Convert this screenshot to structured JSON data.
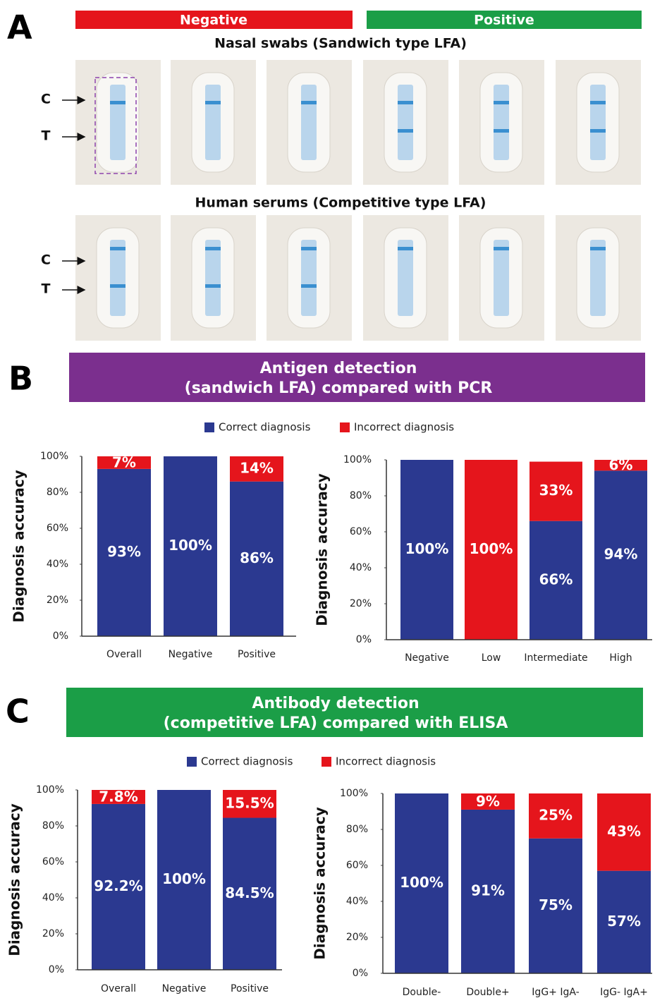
{
  "panel_a": {
    "label": "A",
    "negative": "Negative",
    "positive": "Positive",
    "rows": [
      {
        "title": "Nasal swabs (Sandwich type LFA)",
        "control": "C",
        "test": "T"
      },
      {
        "title": "Human serums (Competitive type LFA)",
        "control": "C",
        "test": "T"
      }
    ]
  },
  "panel_b": {
    "label": "B",
    "title": [
      "Antigen detection",
      "(sandwich LFA) compared with PCR"
    ]
  },
  "panel_c": {
    "label": "C",
    "title": [
      "Antibody detection",
      "(competitive LFA) compared with ELISA"
    ]
  },
  "chart_data": [
    {
      "type": "stacked_bar",
      "ylabel": "Diagnosis accuracy",
      "categories": [
        "Overall",
        "Negative",
        "Positive"
      ],
      "series": [
        {
          "name": "Correct diagnosis",
          "color": "#2b3990",
          "values": [
            93,
            100,
            86
          ],
          "value_labels": [
            "93%",
            "100%",
            "86%"
          ]
        },
        {
          "name": "Incorrect diagnosis",
          "color": "#e5151c",
          "values": [
            7,
            0,
            14
          ],
          "value_labels": [
            "7%",
            null,
            "14%"
          ]
        }
      ],
      "ylim": [
        0,
        100
      ],
      "yticks": [
        {
          "value": 0,
          "label": "0%"
        },
        {
          "value": 20,
          "label": "20%"
        },
        {
          "value": 40,
          "label": "40%"
        },
        {
          "value": 60,
          "label": "60%"
        },
        {
          "value": 80,
          "label": "80%"
        },
        {
          "value": 100,
          "label": "100%"
        }
      ]
    },
    {
      "type": "stacked_bar",
      "ylabel": "Diagnosis accuracy",
      "categories": [
        "Negative",
        "Low",
        "Intermediate",
        "High"
      ],
      "series": [
        {
          "name": "Correct diagnosis",
          "color": "#2b3990",
          "values": [
            100,
            0,
            66,
            94
          ],
          "value_labels": [
            "100%",
            null,
            "66%",
            "94%"
          ]
        },
        {
          "name": "Incorrect diagnosis",
          "color": "#e5151c",
          "values": [
            0,
            100,
            33,
            6
          ],
          "value_labels": [
            null,
            "100%",
            "33%",
            "6%"
          ]
        }
      ],
      "ylim": [
        0,
        100
      ],
      "yticks": [
        {
          "value": 0,
          "label": "0%"
        },
        {
          "value": 20,
          "label": "20%"
        },
        {
          "value": 40,
          "label": "40%"
        },
        {
          "value": 60,
          "label": "60%"
        },
        {
          "value": 80,
          "label": "80%"
        },
        {
          "value": 100,
          "label": "100%"
        }
      ]
    },
    {
      "type": "stacked_bar",
      "ylabel": "Diagnosis accuracy",
      "categories": [
        "Overall",
        "Negative",
        "Positive"
      ],
      "series": [
        {
          "name": "Correct diagnosis",
          "color": "#2b3990",
          "values": [
            92.2,
            100,
            84.5
          ],
          "value_labels": [
            "92.2%",
            "100%",
            "84.5%"
          ]
        },
        {
          "name": "Incorrect diagnosis",
          "color": "#e5151c",
          "values": [
            7.8,
            0,
            15.5
          ],
          "value_labels": [
            "7.8%",
            null,
            "15.5%"
          ]
        }
      ],
      "ylim": [
        0,
        100
      ],
      "yticks": [
        {
          "value": 0,
          "label": "0%"
        },
        {
          "value": 20,
          "label": "20%"
        },
        {
          "value": 40,
          "label": "40%"
        },
        {
          "value": 60,
          "label": "60%"
        },
        {
          "value": 80,
          "label": "80%"
        },
        {
          "value": 100,
          "label": "100%"
        }
      ]
    },
    {
      "type": "stacked_bar",
      "ylabel": "Diagnosis accuracy",
      "categories": [
        "Double-",
        "Double+",
        "IgG+ IgA-",
        "IgG- IgA+"
      ],
      "series": [
        {
          "name": "Correct diagnosis",
          "color": "#2b3990",
          "values": [
            100,
            91,
            75,
            57
          ],
          "value_labels": [
            "100%",
            "91%",
            "75%",
            "57%"
          ]
        },
        {
          "name": "Incorrect diagnosis",
          "color": "#e5151c",
          "values": [
            0,
            9,
            25,
            43
          ],
          "value_labels": [
            null,
            "9%",
            "25%",
            "43%"
          ]
        }
      ],
      "ylim": [
        0,
        100
      ],
      "yticks": [
        {
          "value": 0,
          "label": "0%"
        },
        {
          "value": 20,
          "label": "20%"
        },
        {
          "value": 40,
          "label": "40%"
        },
        {
          "value": 60,
          "label": "60%"
        },
        {
          "value": 80,
          "label": "80%"
        },
        {
          "value": 100,
          "label": "100%"
        }
      ]
    }
  ]
}
